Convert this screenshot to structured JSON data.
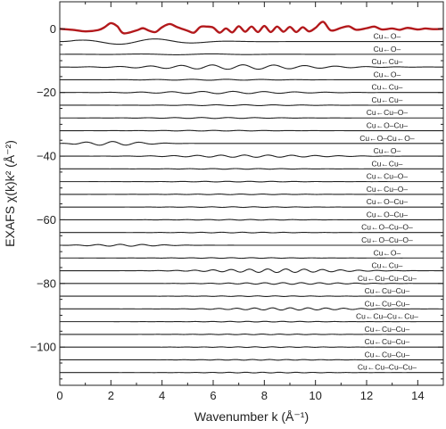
{
  "chart_data": {
    "type": "line",
    "title": "",
    "xlabel": "Wavenumber k (Å⁻¹)",
    "ylabel": "EXAFS χ(k)k² (Å⁻²)",
    "xlim": [
      0,
      15
    ],
    "ylim": [
      -112,
      8.5
    ],
    "x_ticks": [
      0,
      2,
      4,
      6,
      8,
      10,
      12,
      14
    ],
    "y_ticks": [
      0,
      -20,
      -40,
      -60,
      -80,
      -100
    ],
    "grid": false,
    "colors": {
      "total": "#b3191c",
      "path": "#222222",
      "frame": "#222222"
    },
    "total_signal": {
      "offset": 0,
      "x": [
        0,
        0.5,
        1.0,
        1.5,
        1.75,
        2.0,
        2.25,
        2.5,
        3.0,
        3.25,
        3.5,
        3.75,
        4.0,
        4.3,
        4.6,
        5.0,
        5.25,
        5.5,
        5.75,
        6.0,
        6.25,
        6.5,
        6.75,
        7.0,
        7.25,
        7.5,
        7.75,
        8.0,
        8.25,
        8.5,
        8.75,
        9.0,
        9.25,
        9.5,
        9.75,
        10.0,
        10.3,
        10.6,
        11.0,
        11.3,
        11.6,
        12.0,
        12.3,
        12.6,
        13.0,
        13.3,
        13.6,
        14.0,
        14.3,
        14.6,
        15.0
      ],
      "y": [
        0,
        -0.3,
        -0.8,
        -0.4,
        0.5,
        1.8,
        0.8,
        -1.4,
        -0.5,
        0.2,
        -0.6,
        -1.0,
        0.5,
        1.5,
        0.5,
        -0.6,
        -1.2,
        0.6,
        0.7,
        0.4,
        -1.2,
        0.1,
        -1.1,
        0.8,
        -0.9,
        0.7,
        -1.0,
        0.9,
        -1.0,
        0.7,
        -0.9,
        0.6,
        -1.0,
        0.5,
        -0.8,
        0.3,
        2.2,
        -0.5,
        0.3,
        0.8,
        -0.3,
        0.2,
        0.7,
        -0.2,
        0.1,
        -0.3,
        0.3,
        -0.2,
        0.1,
        -0.1,
        0
      ]
    },
    "paths": [
      {
        "label": "Cu←O–",
        "offset": -4,
        "amp": 0.9,
        "freq": 1.04,
        "center": 3.0,
        "width": 2.6
      },
      {
        "label": "Cu←O–",
        "offset": -8,
        "amp": 0.15,
        "freq": 1.1,
        "center": 5.0,
        "width": 3.0
      },
      {
        "label": "Cu←Cu–",
        "offset": -12,
        "amp": 0.7,
        "freq": 2.6,
        "center": 7.0,
        "width": 4.0
      },
      {
        "label": "Cu←O–",
        "offset": -16,
        "amp": 0.15,
        "freq": 2.3,
        "center": 6.0,
        "width": 3.0
      },
      {
        "label": "Cu←Cu–",
        "offset": -20,
        "amp": 0.35,
        "freq": 2.6,
        "center": 6.5,
        "width": 3.5
      },
      {
        "label": "Cu←Cu–",
        "offset": -24,
        "amp": 0.15,
        "freq": 2.8,
        "center": 7.0,
        "width": 3.0
      },
      {
        "label": "Cu←Cu–O–",
        "offset": -28,
        "amp": 0.15,
        "freq": 3.0,
        "center": 6.0,
        "width": 3.0
      },
      {
        "label": "Cu←O–Cu–",
        "offset": -32,
        "amp": 0.1,
        "freq": 3.2,
        "center": 6.0,
        "width": 3.0
      },
      {
        "label": "Cu←O–Cu←O–",
        "offset": -36,
        "amp": 0.6,
        "freq": 3.0,
        "center": 2.0,
        "width": 1.6
      },
      {
        "label": "Cu←O–",
        "offset": -40,
        "amp": 0.35,
        "freq": 3.4,
        "center": 7.5,
        "width": 3.5
      },
      {
        "label": "Cu←Cu–",
        "offset": -44,
        "amp": 0.1,
        "freq": 3.5,
        "center": 7.0,
        "width": 3.0
      },
      {
        "label": "Cu←Cu–O–",
        "offset": -48,
        "amp": 0.1,
        "freq": 3.6,
        "center": 7.0,
        "width": 3.0
      },
      {
        "label": "Cu←Cu–O–",
        "offset": -52,
        "amp": 0.1,
        "freq": 3.7,
        "center": 7.0,
        "width": 3.0
      },
      {
        "label": "Cu←O–Cu–",
        "offset": -56,
        "amp": 0.1,
        "freq": 3.8,
        "center": 7.0,
        "width": 3.0
      },
      {
        "label": "Cu←O–Cu–",
        "offset": -60,
        "amp": 0.1,
        "freq": 3.8,
        "center": 7.0,
        "width": 3.0
      },
      {
        "label": "Cu←O–Cu–O–",
        "offset": -64,
        "amp": 0.1,
        "freq": 3.9,
        "center": 7.0,
        "width": 3.0
      },
      {
        "label": "Cu←O–Cu–O–",
        "offset": -68,
        "amp": 0.3,
        "freq": 3.6,
        "center": 2.5,
        "width": 1.8
      },
      {
        "label": "Cu←O–",
        "offset": -72,
        "amp": 0.1,
        "freq": 4.0,
        "center": 7.0,
        "width": 3.0
      },
      {
        "label": "Cu←Cu–",
        "offset": -76,
        "amp": 0.55,
        "freq": 4.4,
        "center": 8.5,
        "width": 3.0
      },
      {
        "label": "Cu←Cu–Cu–Cu–",
        "offset": -80,
        "amp": 0.25,
        "freq": 4.4,
        "center": 9.0,
        "width": 3.0
      },
      {
        "label": "Cu←Cu–Cu–",
        "offset": -84,
        "amp": 0.1,
        "freq": 4.5,
        "center": 8.0,
        "width": 3.0
      },
      {
        "label": "Cu←Cu–Cu–",
        "offset": -88,
        "amp": 0.35,
        "freq": 4.5,
        "center": 9.0,
        "width": 3.0
      },
      {
        "label": "Cu←Cu–Cu←Cu–",
        "offset": -92,
        "amp": 0.1,
        "freq": 4.6,
        "center": 8.0,
        "width": 3.0
      },
      {
        "label": "Cu←Cu–Cu–",
        "offset": -96,
        "amp": 0.1,
        "freq": 4.6,
        "center": 8.0,
        "width": 3.0
      },
      {
        "label": "Cu←Cu–Cu–",
        "offset": -100,
        "amp": 0.1,
        "freq": 4.7,
        "center": 8.0,
        "width": 3.0
      },
      {
        "label": "Cu←Cu–Cu–",
        "offset": -104,
        "amp": 0.1,
        "freq": 4.7,
        "center": 8.0,
        "width": 3.0
      },
      {
        "label": "Cu←Cu–Cu–Cu–",
        "offset": -108,
        "amp": 0.1,
        "freq": 4.8,
        "center": 8.0,
        "width": 3.0
      }
    ]
  }
}
